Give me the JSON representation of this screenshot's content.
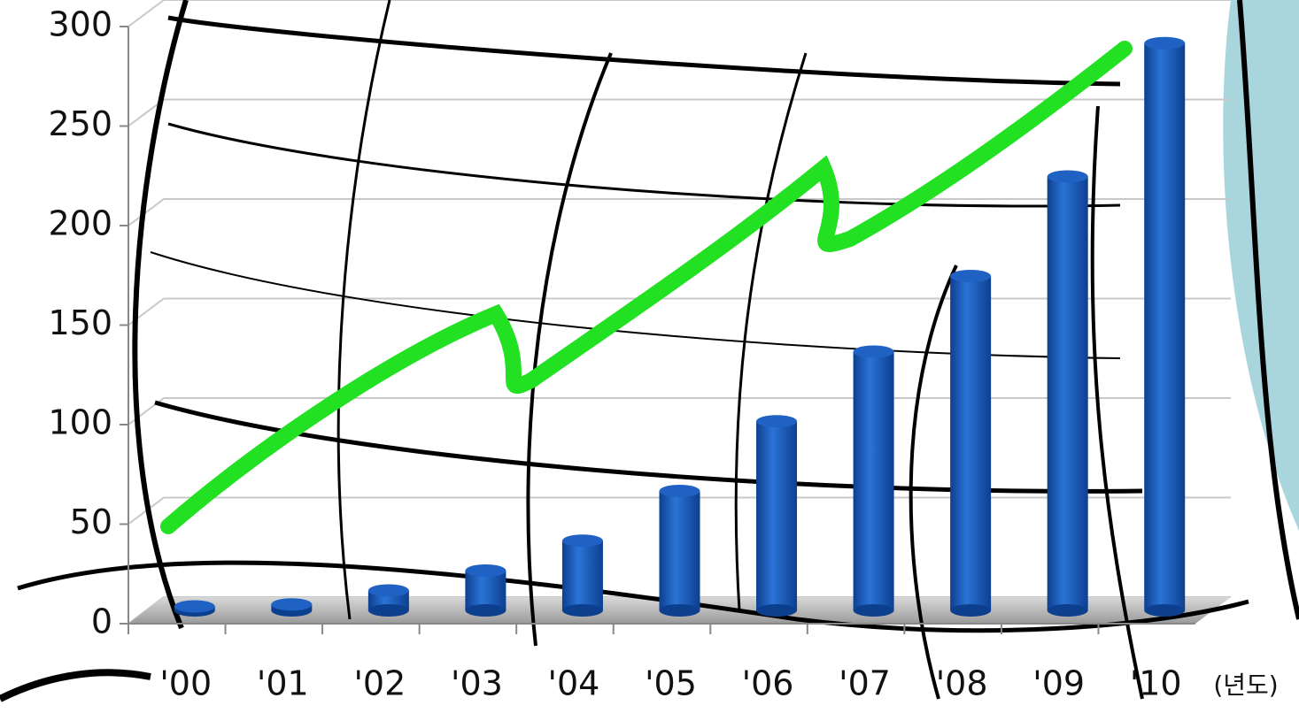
{
  "chart_data": {
    "type": "bar",
    "x_label": "(년도)",
    "categories": [
      "'00",
      "'01",
      "'02",
      "'03",
      "'04",
      "'05",
      "'06",
      "'07",
      "'08",
      "'09",
      "'10"
    ],
    "values": [
      2,
      3,
      10,
      20,
      35,
      60,
      95,
      130,
      168,
      218,
      285
    ],
    "color": "#1f62c4",
    "ylim": [
      0,
      300
    ],
    "yticks": [
      0,
      50,
      100,
      150,
      200,
      250,
      300
    ],
    "grid": true
  }
}
